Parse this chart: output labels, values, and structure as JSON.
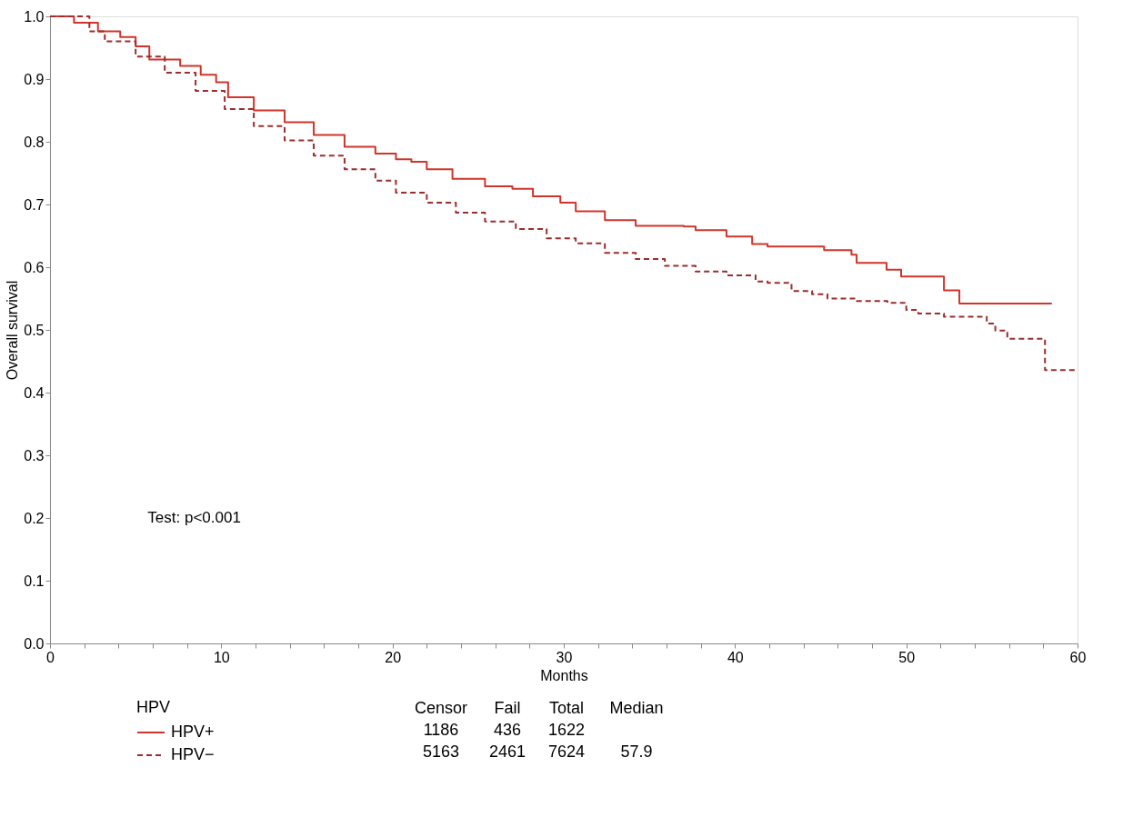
{
  "chart_data": {
    "type": "step",
    "xlabel": "Months",
    "ylabel": "Overall survival",
    "legend_title": "HPV",
    "legend": "bottom",
    "grid": false,
    "xlim": [
      0,
      60
    ],
    "ylim": [
      0,
      1.0
    ],
    "xticks": [
      0,
      {
        "value": 2,
        "label": null
      },
      {
        "value": 4,
        "label": null
      },
      {
        "value": 6,
        "label": null
      },
      {
        "value": 8,
        "label": null
      },
      10,
      {
        "value": 12,
        "label": null
      },
      {
        "value": 14,
        "label": null
      },
      {
        "value": 16,
        "label": null
      },
      {
        "value": 18,
        "label": null
      },
      20,
      {
        "value": 22,
        "label": null
      },
      {
        "value": 24,
        "label": null
      },
      {
        "value": 26,
        "label": null
      },
      {
        "value": 28,
        "label": null
      },
      30,
      {
        "value": 32,
        "label": null
      },
      {
        "value": 34,
        "label": null
      },
      {
        "value": 36,
        "label": null
      },
      {
        "value": 38,
        "label": null
      },
      40,
      {
        "value": 42,
        "label": null
      },
      {
        "value": 44,
        "label": null
      },
      {
        "value": 46,
        "label": null
      },
      {
        "value": 48,
        "label": null
      },
      50,
      {
        "value": 52,
        "label": null
      },
      {
        "value": 54,
        "label": null
      },
      {
        "value": 56,
        "label": null
      },
      {
        "value": 58,
        "label": null
      },
      60
    ],
    "yticks": [
      {
        "value": 0,
        "label": "0.0"
      },
      0.1,
      0.2,
      0.3,
      0.4,
      0.5,
      0.6,
      0.7,
      0.8,
      0.9,
      {
        "value": 1.0,
        "label": "1.0"
      }
    ],
    "series": [
      {
        "name": "HPV+",
        "color": "#d0352b",
        "line_style": "solid",
        "x": [
          0,
          1.4,
          2.8,
          4.1,
          5.0,
          5.8,
          6.7,
          7.6,
          8.8,
          9.7,
          10.4,
          11.9,
          13.7,
          15.4,
          17.2,
          19.0,
          20.2,
          21.1,
          22.0,
          23.5,
          25.4,
          27.0,
          28.2,
          29.8,
          30.7,
          32.4,
          34.2,
          37.0,
          37.7,
          39.5,
          41.0,
          41.9,
          45.2,
          46.8,
          47.1,
          48.85,
          49.7,
          52.2,
          53.1,
          58.5
        ],
        "values": [
          1.0,
          0.99,
          0.976,
          0.967,
          0.952,
          0.931,
          0.931,
          0.921,
          0.907,
          0.895,
          0.871,
          0.85,
          0.831,
          0.811,
          0.792,
          0.781,
          0.772,
          0.768,
          0.756,
          0.741,
          0.729,
          0.725,
          0.713,
          0.703,
          0.689,
          0.675,
          0.666,
          0.665,
          0.659,
          0.649,
          0.637,
          0.633,
          0.627,
          0.62,
          0.607,
          0.596,
          0.585,
          0.563,
          0.542,
          0.542
        ]
      },
      {
        "name": "HPV−",
        "color": "#9b2d2d",
        "line_style": "dashed",
        "x": [
          0,
          2.3,
          3.2,
          5.0,
          6.7,
          8.5,
          10.2,
          11.9,
          13.7,
          15.4,
          17.2,
          19.0,
          20.2,
          22.0,
          23.7,
          25.4,
          27.2,
          29.0,
          30.7,
          32.4,
          34.2,
          35.9,
          37.7,
          39.5,
          41.2,
          41.9,
          43.3,
          44.5,
          45.4,
          47.1,
          48.9,
          50.0,
          50.7,
          52.2,
          54.7,
          55.2,
          55.9,
          58.1,
          60
        ],
        "values": [
          1.0,
          0.976,
          0.96,
          0.936,
          0.91,
          0.881,
          0.852,
          0.825,
          0.802,
          0.778,
          0.756,
          0.738,
          0.719,
          0.703,
          0.687,
          0.673,
          0.661,
          0.646,
          0.638,
          0.623,
          0.613,
          0.602,
          0.593,
          0.587,
          0.577,
          0.575,
          0.562,
          0.557,
          0.55,
          0.546,
          0.543,
          0.532,
          0.526,
          0.521,
          0.51,
          0.499,
          0.486,
          0.436,
          0.436
        ]
      }
    ],
    "annotations": [
      "Test: p<0.001",
      "Censor",
      "Fail",
      "Total",
      "Median",
      "1186",
      "436",
      "1622",
      null,
      "5163",
      "2461",
      "7624",
      "57.9"
    ]
  }
}
